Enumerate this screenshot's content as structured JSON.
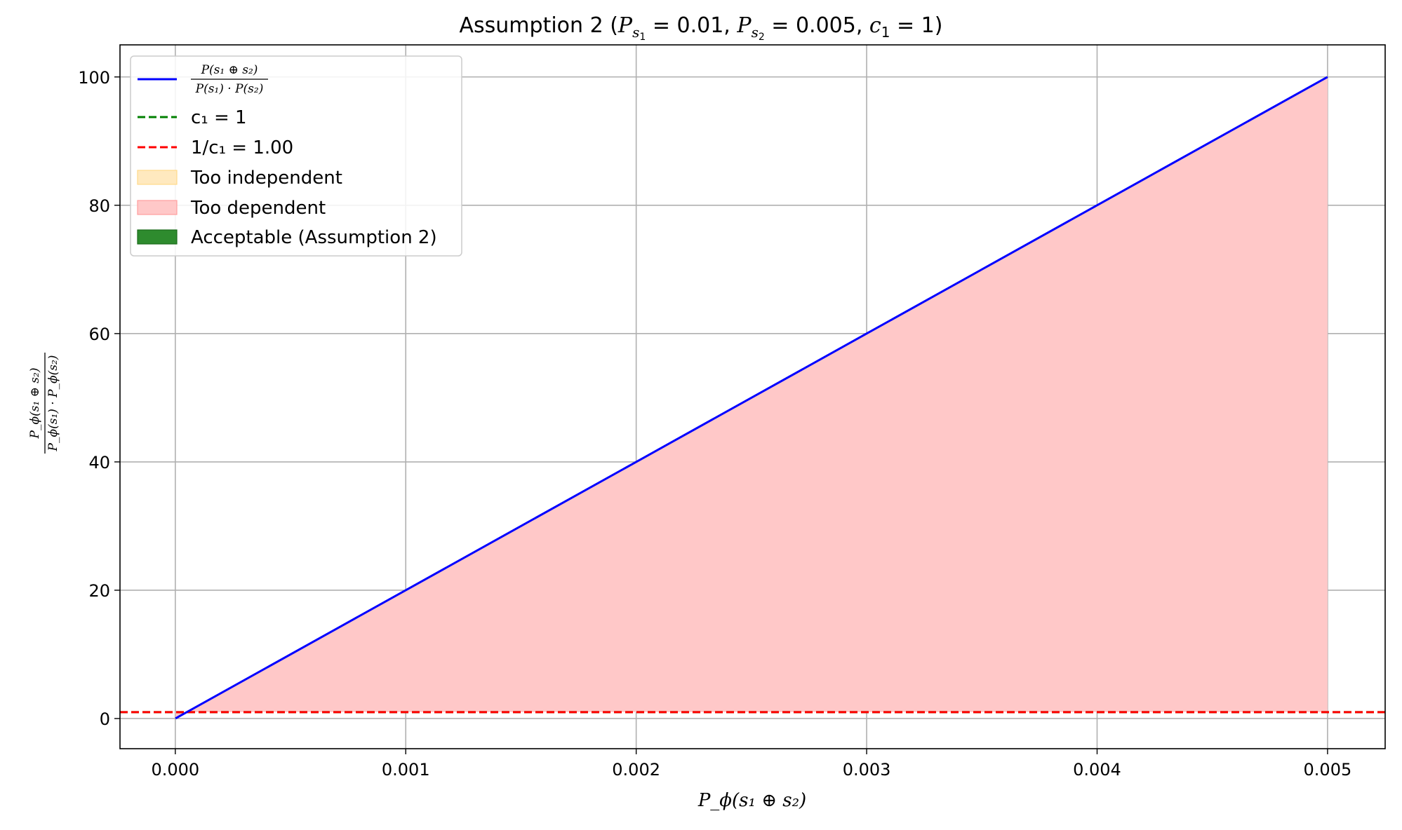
{
  "chart_data": {
    "type": "line",
    "title": {
      "prefix": "Assumption 2 (",
      "p1_sym": "P",
      "p1_sub": "s",
      "p1_subsub": "1",
      "p1_val": " = 0.01, ",
      "p2_sym": "P",
      "p2_sub": "s",
      "p2_subsub": "2",
      "p2_val": " = 0.005, ",
      "c_sym": "c",
      "c_sub": "1",
      "c_val": " = 1)"
    },
    "xlabel": "P_ϕ(s₁ ⊕ s₂)",
    "ylabel": "P_ϕ(s₁ ⊕ s₂) / (P_ϕ(s₁) · P_ϕ(s₂))",
    "xlim": [
      -0.00024,
      0.00525
    ],
    "ylim": [
      -4.7,
      105
    ],
    "x_ticks": [
      0.0,
      0.001,
      0.002,
      0.003,
      0.004,
      0.005
    ],
    "x_tick_labels": [
      "0.000",
      "0.001",
      "0.002",
      "0.003",
      "0.004",
      "0.005"
    ],
    "y_ticks": [
      0,
      20,
      40,
      60,
      80,
      100
    ],
    "y_tick_labels": [
      "0",
      "20",
      "40",
      "60",
      "80",
      "100"
    ],
    "grid": true,
    "legend_position": "top-left",
    "series": [
      {
        "name": "P(s₁ ⊕ s₂) / (P(s₁) · P(s₂))",
        "kind": "line",
        "color": "#0000ff",
        "x": [
          1e-06,
          0.001,
          0.002,
          0.003,
          0.004,
          0.005
        ],
        "y": [
          0.02,
          20,
          40,
          60,
          80,
          100
        ]
      },
      {
        "name": "c₁ = 1",
        "kind": "hline",
        "color": "#008000",
        "y": 1
      },
      {
        "name": "1/c₁ = 1.00",
        "kind": "hline",
        "color": "#ff0000",
        "y": 1
      },
      {
        "name": "Too independent",
        "kind": "fill",
        "color": "#ffe9bf"
      },
      {
        "name": "Too dependent",
        "kind": "fill",
        "color": "#ffc8c8",
        "x": [
          1e-06,
          0.005
        ],
        "from": 1,
        "to": "line"
      },
      {
        "name": "Acceptable (Assumption 2)",
        "kind": "fill",
        "color": "#2e8b2e"
      }
    ],
    "legend": {
      "entry0_num": "P(s₁ ⊕ s₂)",
      "entry0_den": "P(s₁) · P(s₂)",
      "entry1": "c₁ = 1",
      "entry2": "1/c₁ = 1.00",
      "entry3": "Too independent",
      "entry4": "Too dependent",
      "entry5": "Acceptable (Assumption 2)"
    },
    "ylabel_parts": {
      "num": "P_ϕ(s₁ ⊕ s₂)",
      "den": "P_ϕ(s₁) · P_ϕ(s₂)"
    }
  }
}
